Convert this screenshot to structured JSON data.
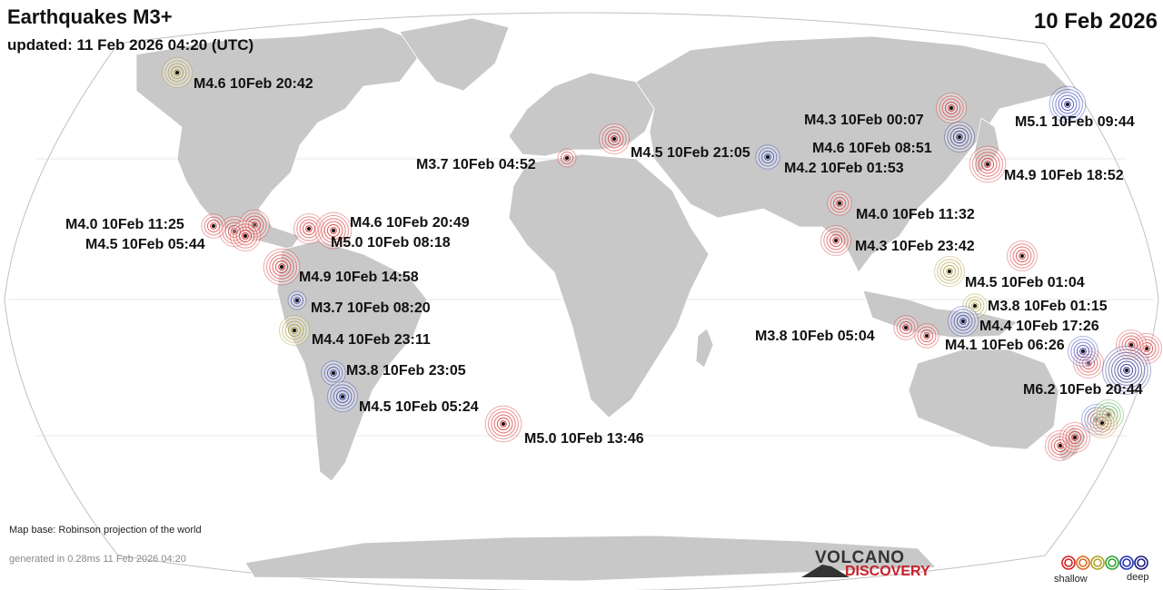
{
  "header": {
    "title": "Earthquakes M3+",
    "updated": "updated: 11 Feb 2026 04:20 (UTC)",
    "date": "10 Feb 2026"
  },
  "footer": {
    "map_base": "Map base: Robinson projection of the world",
    "generated": "generated in 0.28ms 11 Feb 2026 04:20",
    "logo_top": "VOLCANO",
    "logo_bottom": "DISCOVERY"
  },
  "legend": {
    "shallow": "shallow",
    "deep": "deep",
    "colors": [
      "#d42020",
      "#d86a20",
      "#b0a020",
      "#30a030",
      "#2030b0",
      "#1a1a80"
    ]
  },
  "colors": {
    "ocean": "#ffffff",
    "land": "#c8c8c8",
    "border": "#ffffff",
    "graticule": "#bbbbbb"
  },
  "labels": [
    "M4.6 10Feb 20:42",
    "M4.3 10Feb 00:07",
    "M5.1 10Feb 09:44",
    "M4.5 10Feb 21:05",
    "M3.7 10Feb 04:52",
    "M4.6 10Feb 08:51",
    "M4.2 10Feb 01:53",
    "M4.9 10Feb 18:52",
    "M4.0 10Feb 11:25",
    "M4.6 10Feb 20:49",
    "M4.5 10Feb 05:44",
    "M5.0 10Feb 08:18",
    "M4.0 10Feb 11:32",
    "M4.3 10Feb 23:42",
    "M4.9 10Feb 14:58",
    "M4.5 10Feb 01:04",
    "M3.7 10Feb 08:20",
    "M3.8 10Feb 01:15",
    "M4.4 10Feb 23:11",
    "M3.8 10Feb 05:04",
    "M4.4 10Feb 17:26",
    "M4.1 10Feb 06:26",
    "M3.8 10Feb 23:05",
    "M6.2 10Feb 20:44",
    "M4.5 10Feb 05:24",
    "M5.0 10Feb 13:46"
  ],
  "quakes": [
    {
      "magnitude": 4.6,
      "depth": "intermediate",
      "color": "#a09020"
    },
    {
      "magnitude": 4.3,
      "depth": "shallow",
      "color": "#d42020"
    },
    {
      "magnitude": 5.1,
      "depth": "deep",
      "color": "#2030b0"
    },
    {
      "magnitude": 4.5,
      "depth": "shallow",
      "color": "#d42020"
    },
    {
      "magnitude": 3.7,
      "depth": "shallow",
      "color": "#d42020"
    },
    {
      "magnitude": 4.6,
      "depth": "deep",
      "color": "#1a1a80"
    },
    {
      "magnitude": 4.2,
      "depth": "deep",
      "color": "#2030b0"
    },
    {
      "magnitude": 4.9,
      "depth": "shallow",
      "color": "#d42020"
    },
    {
      "magnitude": 4.0,
      "depth": "shallow",
      "color": "#d42020"
    },
    {
      "magnitude": 4.6,
      "depth": "shallow",
      "color": "#d42020"
    },
    {
      "magnitude": 4.5,
      "depth": "shallow",
      "color": "#d42020"
    },
    {
      "magnitude": 5.0,
      "depth": "shallow",
      "color": "#d42020"
    },
    {
      "magnitude": 4.0,
      "depth": "shallow",
      "color": "#d42020"
    },
    {
      "magnitude": 4.3,
      "depth": "shallow",
      "color": "#d42020"
    },
    {
      "magnitude": 4.9,
      "depth": "shallow",
      "color": "#d42020"
    },
    {
      "magnitude": 4.5,
      "depth": "intermediate",
      "color": "#a09020"
    },
    {
      "magnitude": 3.7,
      "depth": "deep",
      "color": "#2030b0"
    },
    {
      "magnitude": 3.8,
      "depth": "intermediate",
      "color": "#a09020"
    },
    {
      "magnitude": 4.4,
      "depth": "intermediate",
      "color": "#a09020"
    },
    {
      "magnitude": 3.8,
      "depth": "shallow",
      "color": "#d42020"
    },
    {
      "magnitude": 4.4,
      "depth": "deep",
      "color": "#2030b0"
    },
    {
      "magnitude": 4.1,
      "depth": "shallow",
      "color": "#d42020"
    },
    {
      "magnitude": 3.8,
      "depth": "deep",
      "color": "#2030b0"
    },
    {
      "magnitude": 6.2,
      "depth": "deep",
      "color": "#1a1a80"
    },
    {
      "magnitude": 4.5,
      "depth": "deep",
      "color": "#2030b0"
    },
    {
      "magnitude": 5.0,
      "depth": "shallow",
      "color": "#d42020"
    }
  ],
  "extra_markers": [
    {
      "color": "#d42020"
    },
    {
      "color": "#d42020"
    },
    {
      "color": "#d42020"
    },
    {
      "color": "#d42020"
    },
    {
      "color": "#d42020"
    },
    {
      "color": "#2030b0"
    },
    {
      "color": "#d42020"
    },
    {
      "color": "#d42020"
    },
    {
      "color": "#2030b0"
    },
    {
      "color": "#30a030"
    },
    {
      "color": "#d86a20"
    },
    {
      "color": "#d42020"
    }
  ]
}
